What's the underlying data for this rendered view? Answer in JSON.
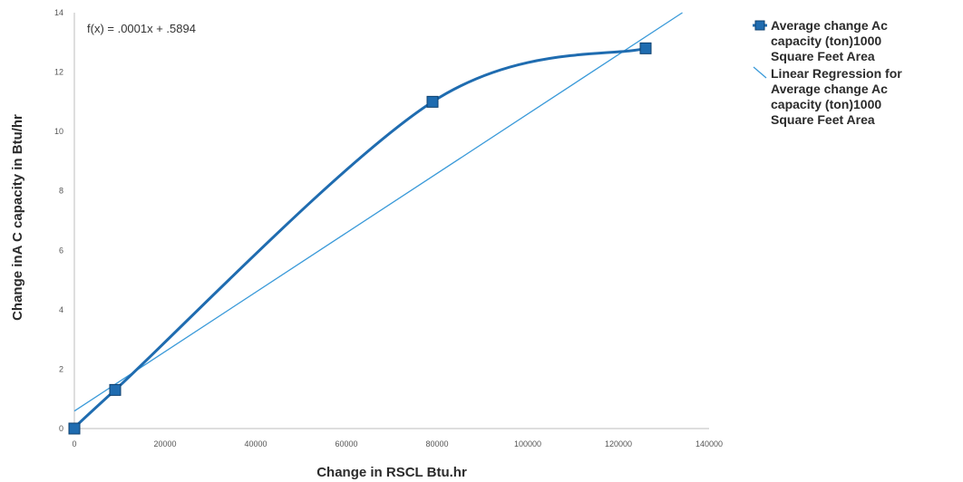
{
  "chart_data": {
    "type": "line",
    "equation": "f(x) = .0001x + .5894",
    "xlabel": "Change in RSCL Btu.hr",
    "ylabel": "Change inA C capacity in Btu/hr",
    "xlim": [
      0,
      140000
    ],
    "ylim": [
      0,
      14
    ],
    "x_ticks": [
      "0",
      "20000",
      "40000",
      "60000",
      "80000",
      "100000",
      "120000",
      "140000"
    ],
    "y_ticks": [
      "0",
      "2",
      "4",
      "6",
      "8",
      "10",
      "12",
      "14"
    ],
    "legend_position": "right",
    "series": [
      {
        "name": "Average change Ac capacity (ton)1000 Square Feet Area",
        "name_lines": [
          "Average change Ac",
          "capacity (ton)1000",
          "Square Feet Area"
        ],
        "kind": "data",
        "color": "#1f6cb0",
        "x": [
          0,
          9000,
          79000,
          126000
        ],
        "y": [
          0,
          1.3,
          11.0,
          12.8
        ]
      },
      {
        "name": "Linear Regression for Average change Ac capacity (ton)1000 Square Feet Area",
        "name_lines": [
          "Linear Regression for",
          "Average change Ac",
          "capacity (ton)1000",
          "Square Feet Area"
        ],
        "kind": "regression",
        "color": "#3a9ad9",
        "slope": 0.0001,
        "intercept": 0.5894
      }
    ]
  }
}
